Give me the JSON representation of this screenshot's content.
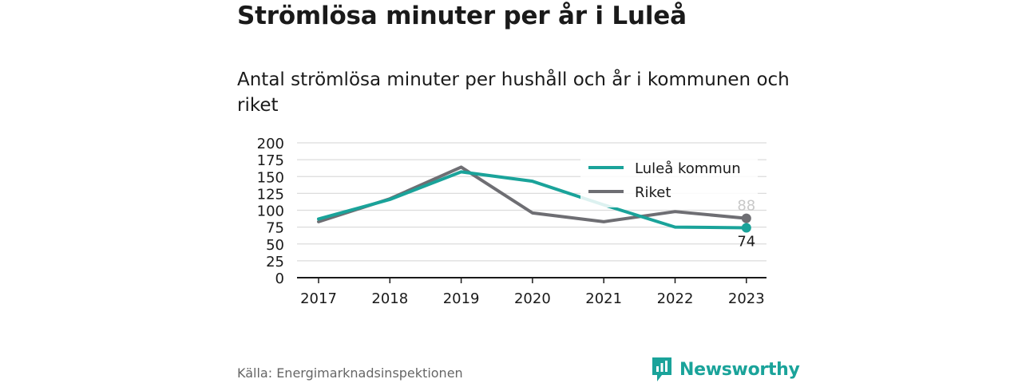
{
  "header": {
    "title": "Strömlösa minuter per år i Luleå",
    "subtitle": "Antal strömlösa minuter per hushåll och år i kommunen och riket"
  },
  "footer": {
    "source": "Källa: Energimarknadsinspektionen",
    "brand": "Newsworthy"
  },
  "colors": {
    "lulea": "#1aa39a",
    "riket": "#6e6e73",
    "brand": "#1aa39a"
  },
  "chart_data": {
    "type": "line",
    "x": [
      "2017",
      "2018",
      "2019",
      "2020",
      "2021",
      "2022",
      "2023"
    ],
    "yticks": [
      "0",
      "25",
      "50",
      "75",
      "100",
      "125",
      "150",
      "175",
      "200"
    ],
    "ylim": [
      0,
      200
    ],
    "grid": true,
    "legend_position": "top-right",
    "series": [
      {
        "name": "Luleå kommun",
        "color": "#1aa39a",
        "values": [
          87,
          116,
          157,
          143,
          108,
          75,
          74
        ],
        "end_label": "74"
      },
      {
        "name": "Riket",
        "color": "#6e6e73",
        "values": [
          83,
          117,
          164,
          96,
          83,
          98,
          88
        ],
        "end_label": "88"
      }
    ]
  }
}
